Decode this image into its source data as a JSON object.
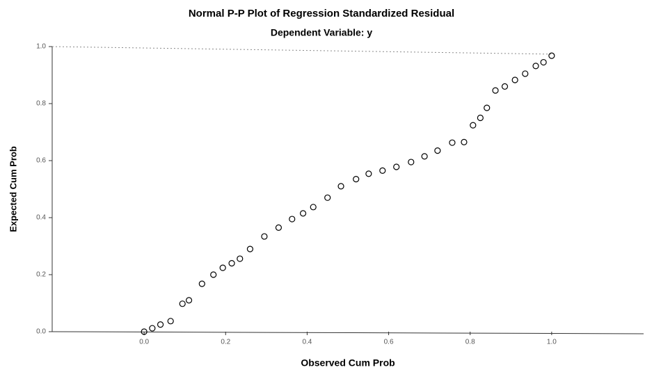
{
  "chart_data": {
    "type": "scatter",
    "title": "Normal P-P Plot of Regression Standardized Residual",
    "subtitle": "Dependent Variable: y",
    "x_label": "Observed Cum Prob",
    "y_label": "Expected Cum Prob",
    "color": "#000000",
    "x": [
      0.0,
      0.02,
      0.04,
      0.065,
      0.094,
      0.11,
      0.142,
      0.17,
      0.193,
      0.215,
      0.235,
      0.26,
      0.295,
      0.33,
      0.363,
      0.39,
      0.415,
      0.45,
      0.483,
      0.52,
      0.551,
      0.585,
      0.619,
      0.655,
      0.688,
      0.72,
      0.756,
      0.785,
      0.807,
      0.825,
      0.841,
      0.862,
      0.885,
      0.91,
      0.935,
      0.961,
      0.98,
      1.0
    ],
    "values": [
      0.0,
      0.012,
      0.025,
      0.037,
      0.098,
      0.11,
      0.168,
      0.2,
      0.224,
      0.24,
      0.256,
      0.29,
      0.334,
      0.365,
      0.395,
      0.415,
      0.437,
      0.47,
      0.51,
      0.535,
      0.554,
      0.565,
      0.578,
      0.595,
      0.615,
      0.635,
      0.663,
      0.665,
      0.724,
      0.75,
      0.785,
      0.846,
      0.86,
      0.883,
      0.905,
      0.932,
      0.945,
      0.968
    ],
    "xlim": [
      -0.2,
      1.2
    ],
    "ylim": [
      0,
      1
    ],
    "xticks": [
      {
        "value": 0,
        "label": "0.0"
      },
      0.2,
      0.4,
      0.6,
      0.8,
      {
        "value": 1,
        "label": "1.0"
      }
    ],
    "yticks": [
      {
        "value": 0,
        "label": "0.0"
      },
      0.2,
      0.4,
      0.6,
      0.8,
      {
        "value": 1,
        "label": "1.0"
      }
    ]
  }
}
